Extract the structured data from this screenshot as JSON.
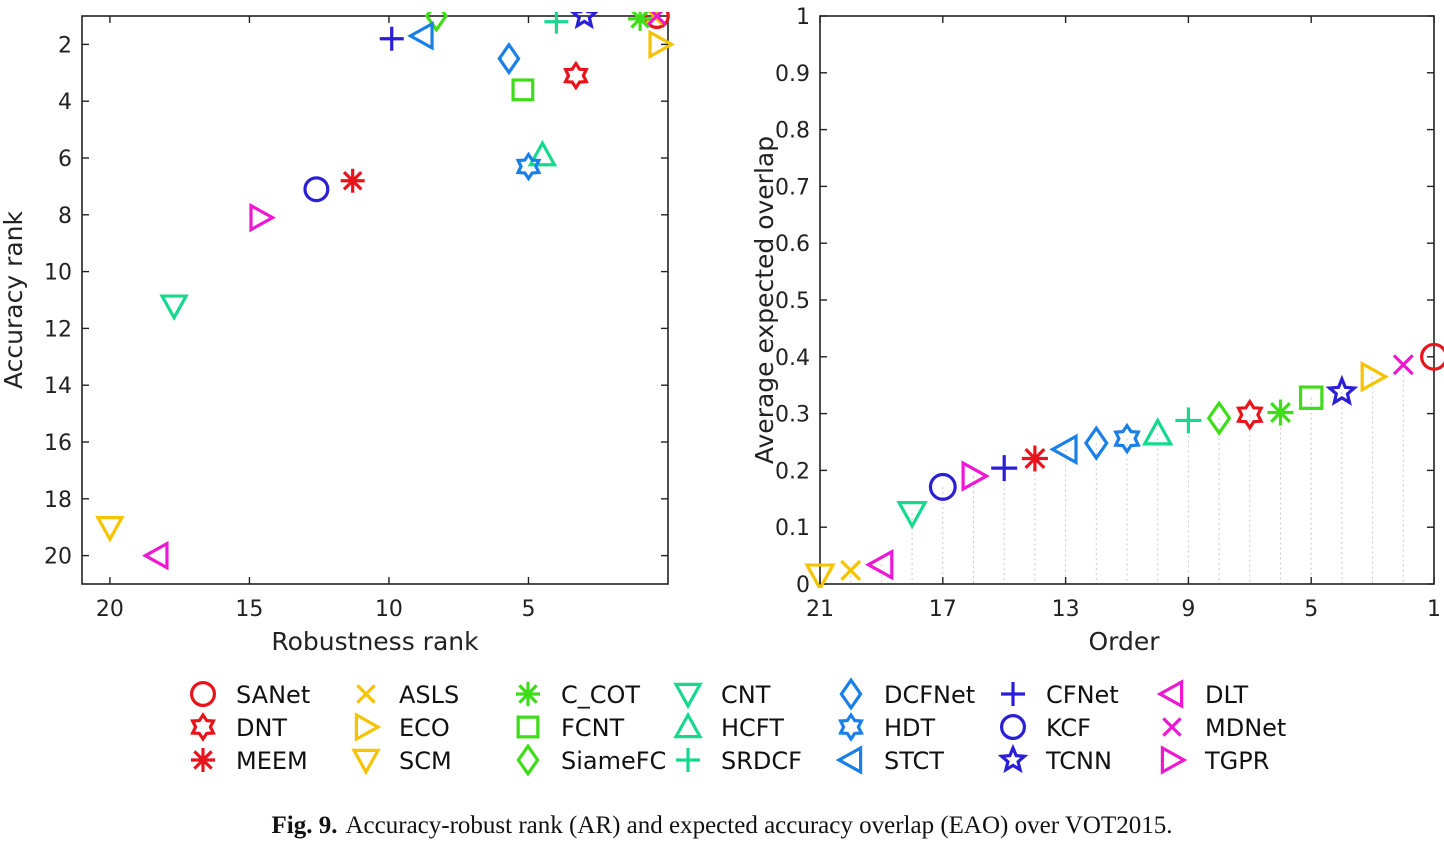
{
  "caption": {
    "label": "Fig. 9.",
    "text": "Accuracy-robust rank (AR) and expected accuracy overlap (EAO) over VOT2015."
  },
  "trackers": [
    {
      "name": "SANet",
      "marker": "circle",
      "color": "#e8141b"
    },
    {
      "name": "DNT",
      "marker": "hexagram",
      "color": "#e8141b"
    },
    {
      "name": "MEEM",
      "marker": "asterisk",
      "color": "#e8141b"
    },
    {
      "name": "ASLS",
      "marker": "x",
      "color": "#f5c400"
    },
    {
      "name": "ECO",
      "marker": "tri-right",
      "color": "#f5c400"
    },
    {
      "name": "SCM",
      "marker": "tri-down",
      "color": "#f5c400"
    },
    {
      "name": "C_COT",
      "marker": "asterisk",
      "color": "#3fdc1a"
    },
    {
      "name": "FCNT",
      "marker": "square",
      "color": "#3fdc1a"
    },
    {
      "name": "SiameFC",
      "marker": "diamond",
      "color": "#3fdc1a"
    },
    {
      "name": "CNT",
      "marker": "tri-down",
      "color": "#17d98e"
    },
    {
      "name": "HCFT",
      "marker": "tri-up",
      "color": "#17d98e"
    },
    {
      "name": "SRDCF",
      "marker": "plus",
      "color": "#17d98e"
    },
    {
      "name": "DCFNet",
      "marker": "diamond",
      "color": "#1a7fe6"
    },
    {
      "name": "HDT",
      "marker": "hexagram",
      "color": "#1a7fe6"
    },
    {
      "name": "STCT",
      "marker": "tri-left",
      "color": "#1a7fe6"
    },
    {
      "name": "CFNet",
      "marker": "plus",
      "color": "#2a1fd6"
    },
    {
      "name": "KCF",
      "marker": "circle",
      "color": "#2a1fd6"
    },
    {
      "name": "TCNN",
      "marker": "pentagram",
      "color": "#2a1fd6"
    },
    {
      "name": "DLT",
      "marker": "tri-left",
      "color": "#ee18d2"
    },
    {
      "name": "MDNet",
      "marker": "x",
      "color": "#ee18d2"
    },
    {
      "name": "TGPR",
      "marker": "tri-right",
      "color": "#ee18d2"
    }
  ],
  "chart_data": [
    {
      "type": "scatter",
      "xlabel": "Robustness rank",
      "ylabel": "Accuracy rank",
      "xlim": [
        21,
        0
      ],
      "ylim": [
        21,
        1
      ],
      "x_reversed": true,
      "y_reversed": true,
      "xticks": [
        20,
        15,
        10,
        5
      ],
      "yticks": [
        2,
        4,
        6,
        8,
        10,
        12,
        14,
        16,
        18,
        20
      ],
      "grid": false,
      "points": [
        {
          "name": "SANet",
          "x": 0.4,
          "y": 1.0
        },
        {
          "name": "DNT",
          "x": 3.3,
          "y": 3.1
        },
        {
          "name": "MEEM",
          "x": 11.3,
          "y": 6.8
        },
        {
          "name": "ASLS",
          "x": 0.5,
          "y": 1.0
        },
        {
          "name": "ECO",
          "x": 0.3,
          "y": 2.0
        },
        {
          "name": "SCM",
          "x": 20.0,
          "y": 19.0
        },
        {
          "name": "C_COT",
          "x": 1.0,
          "y": 1.1
        },
        {
          "name": "FCNT",
          "x": 5.2,
          "y": 3.6
        },
        {
          "name": "SiameFC",
          "x": 8.3,
          "y": 1.0
        },
        {
          "name": "CNT",
          "x": 17.7,
          "y": 11.2
        },
        {
          "name": "HCFT",
          "x": 4.5,
          "y": 5.9
        },
        {
          "name": "SRDCF",
          "x": 4.0,
          "y": 1.2
        },
        {
          "name": "DCFNet",
          "x": 5.7,
          "y": 2.5
        },
        {
          "name": "HDT",
          "x": 5.0,
          "y": 6.3
        },
        {
          "name": "STCT",
          "x": 8.8,
          "y": 1.7
        },
        {
          "name": "CFNet",
          "x": 9.9,
          "y": 1.8
        },
        {
          "name": "KCF",
          "x": 12.6,
          "y": 7.1
        },
        {
          "name": "TCNN",
          "x": 3.0,
          "y": 1.0
        },
        {
          "name": "DLT",
          "x": 18.3,
          "y": 20.0
        },
        {
          "name": "MDNet",
          "x": 0.4,
          "y": 1.0
        },
        {
          "name": "TGPR",
          "x": 14.6,
          "y": 8.1
        }
      ]
    },
    {
      "type": "scatter",
      "xlabel": "Order",
      "ylabel": "Average expected overlap",
      "xlim": [
        21,
        1
      ],
      "ylim": [
        0,
        1
      ],
      "x_reversed": true,
      "xticks": [
        21,
        17,
        13,
        9,
        5,
        1
      ],
      "yticks": [
        0,
        0.1,
        0.2,
        0.3,
        0.4,
        0.5,
        0.6,
        0.7,
        0.8,
        0.9,
        1
      ],
      "grid": false,
      "stems": true,
      "points": [
        {
          "name": "SANet",
          "x": 1,
          "y": 0.4
        },
        {
          "name": "MDNet",
          "x": 2,
          "y": 0.386
        },
        {
          "name": "ECO",
          "x": 3,
          "y": 0.365
        },
        {
          "name": "TCNN",
          "x": 4,
          "y": 0.338
        },
        {
          "name": "FCNT",
          "x": 5,
          "y": 0.328
        },
        {
          "name": "C_COT",
          "x": 6,
          "y": 0.302
        },
        {
          "name": "DNT",
          "x": 7,
          "y": 0.298
        },
        {
          "name": "SiameFC",
          "x": 8,
          "y": 0.292
        },
        {
          "name": "SRDCF",
          "x": 9,
          "y": 0.288
        },
        {
          "name": "HCFT",
          "x": 10,
          "y": 0.265
        },
        {
          "name": "HDT",
          "x": 11,
          "y": 0.256
        },
        {
          "name": "DCFNet",
          "x": 12,
          "y": 0.248
        },
        {
          "name": "STCT",
          "x": 13,
          "y": 0.237
        },
        {
          "name": "MEEM",
          "x": 14,
          "y": 0.221
        },
        {
          "name": "CFNet",
          "x": 15,
          "y": 0.204
        },
        {
          "name": "TGPR",
          "x": 16,
          "y": 0.19
        },
        {
          "name": "KCF",
          "x": 17,
          "y": 0.171
        },
        {
          "name": "CNT",
          "x": 18,
          "y": 0.125
        },
        {
          "name": "DLT",
          "x": 19,
          "y": 0.034
        },
        {
          "name": "ASLS",
          "x": 20,
          "y": 0.024
        },
        {
          "name": "SCM",
          "x": 21,
          "y": 0.015
        }
      ]
    }
  ]
}
